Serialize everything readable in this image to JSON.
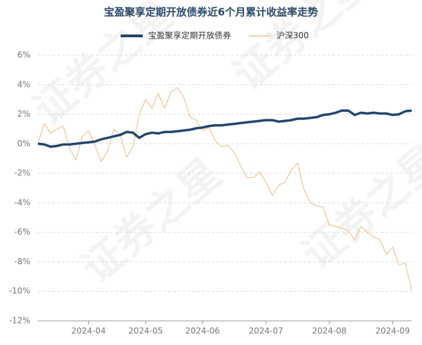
{
  "chart_data": {
    "type": "line",
    "title": "宝盈聚享定期开放债券近6个月累计收益率走势",
    "watermark": "证券之星",
    "categories": [
      null,
      null,
      null,
      null,
      null,
      null,
      null,
      null,
      "2024-04",
      null,
      null,
      null,
      null,
      null,
      null,
      null,
      null,
      "2024-05",
      null,
      null,
      null,
      null,
      null,
      null,
      null,
      null,
      "2024-06",
      null,
      null,
      null,
      null,
      null,
      null,
      null,
      null,
      null,
      "2024-07",
      null,
      null,
      null,
      null,
      null,
      null,
      null,
      null,
      null,
      "2024-08",
      null,
      null,
      null,
      null,
      null,
      null,
      null,
      null,
      null,
      "2024-09",
      null,
      null,
      null
    ],
    "series": [
      {
        "name": "宝盈聚享定期开放债券",
        "color": "#21466e",
        "values": [
          0.0,
          -0.05,
          -0.2,
          -0.15,
          -0.05,
          -0.05,
          0.0,
          0.05,
          0.1,
          0.15,
          0.3,
          0.4,
          0.5,
          0.6,
          0.8,
          0.75,
          0.4,
          0.65,
          0.75,
          0.7,
          0.8,
          0.8,
          0.85,
          0.9,
          0.95,
          1.05,
          1.1,
          1.2,
          1.25,
          1.25,
          1.3,
          1.35,
          1.4,
          1.45,
          1.5,
          1.55,
          1.6,
          1.6,
          1.5,
          1.55,
          1.6,
          1.7,
          1.7,
          1.75,
          1.8,
          1.95,
          2.0,
          2.1,
          2.25,
          2.25,
          1.95,
          2.1,
          2.05,
          2.1,
          2.05,
          2.05,
          1.95,
          2.0,
          2.2,
          2.25
        ]
      },
      {
        "name": "沪深300",
        "color": "#f0c38f",
        "values": [
          0.0,
          1.4,
          0.7,
          1.0,
          1.2,
          -0.3,
          -1.1,
          0.5,
          0.9,
          -0.1,
          -1.2,
          -0.5,
          1.0,
          0.6,
          -0.9,
          -0.2,
          2.0,
          3.0,
          2.4,
          3.4,
          2.4,
          3.5,
          3.8,
          3.2,
          1.8,
          1.6,
          0.9,
          1.1,
          0.2,
          -0.2,
          -0.1,
          -0.6,
          -1.5,
          -2.3,
          -2.3,
          -1.9,
          -2.6,
          -3.5,
          -2.8,
          -2.6,
          -1.8,
          -1.3,
          -3.1,
          -4.0,
          -4.2,
          -4.3,
          -5.5,
          -5.6,
          -5.7,
          -5.9,
          -6.5,
          -5.6,
          -6.0,
          -6.3,
          -6.5,
          -7.5,
          -7.0,
          -8.2,
          -8.1,
          -9.9
        ]
      }
    ],
    "ylim": [
      -12,
      6
    ],
    "yticks": [
      {
        "value": -12,
        "label": "-12%"
      },
      {
        "value": -10,
        "label": "-10%"
      },
      {
        "value": -8,
        "label": "-8%"
      },
      {
        "value": -6,
        "label": "-6%"
      },
      {
        "value": -4,
        "label": "-4%"
      },
      {
        "value": -2,
        "label": "-2%"
      },
      {
        "value": 0,
        "label": "0%"
      },
      {
        "value": 2,
        "label": "2%"
      },
      {
        "value": 4,
        "label": "4%"
      },
      {
        "value": 6,
        "label": "6%"
      }
    ],
    "grid": true
  }
}
